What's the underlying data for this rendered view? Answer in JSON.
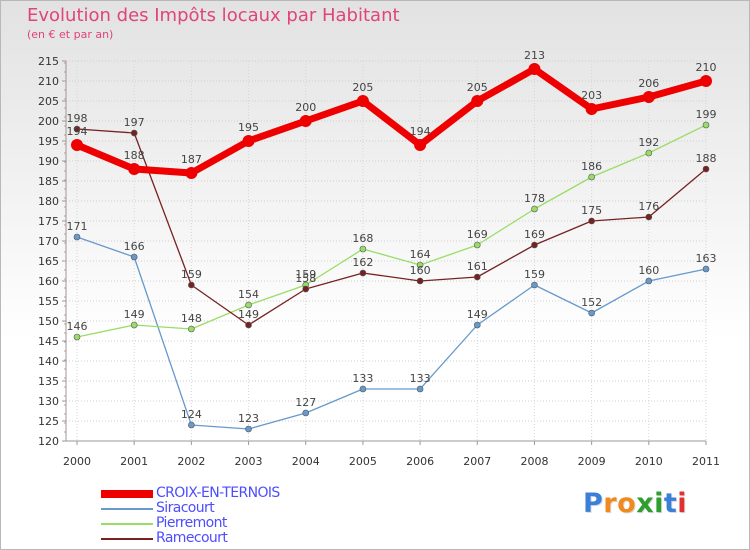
{
  "title": "Evolution des Impôts locaux par Habitant",
  "subtitle": "(en € et par an)",
  "logo": {
    "text": "Proxiti",
    "letters": [
      "P",
      "r",
      "o",
      "x",
      "i",
      "t",
      "i"
    ],
    "colors": [
      "#3a7fd8",
      "#f08a1f",
      "#f08a1f",
      "#2e9e2e",
      "#2e9e2e",
      "#3a7fd8",
      "#e03030"
    ]
  },
  "chart_data": {
    "type": "line",
    "title": "Evolution des Impôts locaux par Habitant",
    "subtitle": "(en € et par an)",
    "xlabel": "",
    "ylabel": "",
    "ylim": [
      120,
      215
    ],
    "ytick_step": 5,
    "grid": true,
    "legend_position": "bottom-left",
    "categories": [
      "2000",
      "2001",
      "2002",
      "2003",
      "2004",
      "2005",
      "2006",
      "2007",
      "2008",
      "2009",
      "2010",
      "2011"
    ],
    "yticks": [
      "120",
      "125",
      "130",
      "135",
      "140",
      "145",
      "150",
      "155",
      "160",
      "165",
      "170",
      "175",
      "180",
      "185",
      "190",
      "195",
      "200",
      "205",
      "210",
      "215"
    ],
    "series": [
      {
        "name": "CROIX-EN-TERNOIS",
        "color": "#ee0000",
        "values": [
          194,
          188,
          187,
          195,
          200,
          205,
          194,
          205,
          213,
          203,
          206,
          210
        ],
        "labels": [
          "194",
          "188",
          "187",
          "195",
          "200",
          "205",
          "194",
          "205",
          "213",
          "203",
          "206",
          "210"
        ]
      },
      {
        "name": "Siracourt",
        "color": "#6699cc",
        "values": [
          171,
          166,
          124,
          123,
          127,
          133,
          133,
          149,
          159,
          152,
          160,
          163
        ],
        "labels": [
          "171",
          "166",
          "124",
          "123",
          "127",
          "133",
          "133",
          "149",
          "159",
          "152",
          "160",
          "163"
        ]
      },
      {
        "name": "Pierremont",
        "color": "#99dd66",
        "values": [
          146,
          149,
          148,
          154,
          159,
          168,
          164,
          169,
          178,
          186,
          192,
          199
        ],
        "labels": [
          "146",
          "149",
          "148",
          "154",
          "159",
          "168",
          "164",
          "169",
          "178",
          "186",
          "192",
          "199"
        ]
      },
      {
        "name": "Ramecourt",
        "color": "#772222",
        "values": [
          198,
          197,
          159,
          149,
          158,
          162,
          160,
          161,
          169,
          175,
          176,
          188
        ],
        "labels": [
          "198",
          "197",
          "159",
          "149",
          "158",
          "162",
          "160",
          "161",
          "169",
          "175",
          "176",
          "188"
        ]
      }
    ]
  }
}
